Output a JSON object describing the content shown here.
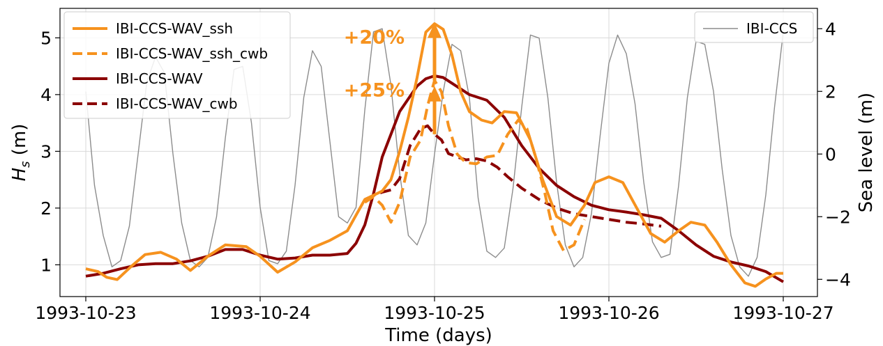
{
  "chart_data": {
    "type": "line",
    "xlabel": "Time (days)",
    "ylabel_left_main": "H",
    "ylabel_left_sub": "s",
    "ylabel_left_unit": " (m)",
    "ylabel_right": "Sea level (m)",
    "x_unit": "days since 1993-10-23 00:00",
    "xlim": [
      0,
      4
    ],
    "x_ticks": [
      {
        "value": 0,
        "label": "1993-10-23"
      },
      {
        "value": 1,
        "label": "1993-10-24"
      },
      {
        "value": 2,
        "label": "1993-10-25"
      },
      {
        "value": 3,
        "label": "1993-10-26"
      },
      {
        "value": 4,
        "label": "1993-10-27"
      }
    ],
    "ylim_left": [
      0.44,
      5.52
    ],
    "y_ticks_left": [
      1,
      2,
      3,
      4,
      5
    ],
    "ylim_right": [
      -4.55,
      4.65
    ],
    "y_ticks_right": [
      -4,
      -2,
      0,
      2,
      4
    ],
    "grid": true,
    "colors": {
      "orange": "#f6921e",
      "darkred": "#8b0000",
      "gray": "#8c8c8c"
    },
    "series": [
      {
        "name": "IBI-CCS-WAV_ssh",
        "axis": "left",
        "color": "#f6921e",
        "style": "solid",
        "x": [
          0,
          0.07,
          0.12,
          0.18,
          0.26,
          0.34,
          0.43,
          0.52,
          0.6,
          0.7,
          0.8,
          0.92,
          1.0,
          1.1,
          1.2,
          1.3,
          1.4,
          1.5,
          1.6,
          1.7,
          1.75,
          1.8,
          1.85,
          1.9,
          1.95,
          2.0,
          2.05,
          2.1,
          2.15,
          2.2,
          2.27,
          2.33,
          2.4,
          2.47,
          2.55,
          2.62,
          2.7,
          2.78,
          2.86,
          2.92,
          3.0,
          3.08,
          3.16,
          3.24,
          3.32,
          3.4,
          3.47,
          3.55,
          3.62,
          3.7,
          3.78,
          3.84,
          3.9,
          3.96,
          4.0
        ],
        "y": [
          0.93,
          0.88,
          0.78,
          0.74,
          0.97,
          1.18,
          1.22,
          1.1,
          0.9,
          1.15,
          1.35,
          1.32,
          1.15,
          0.87,
          1.05,
          1.3,
          1.43,
          1.6,
          2.15,
          2.3,
          2.5,
          3.0,
          3.6,
          4.3,
          5.1,
          5.25,
          5.15,
          4.7,
          4.05,
          3.7,
          3.55,
          3.5,
          3.7,
          3.68,
          3.2,
          2.5,
          1.85,
          1.7,
          2.05,
          2.45,
          2.55,
          2.45,
          2.0,
          1.55,
          1.4,
          1.6,
          1.75,
          1.7,
          1.4,
          1.0,
          0.68,
          0.62,
          0.75,
          0.85,
          0.85
        ]
      },
      {
        "name": "IBI-CCS-WAV_ssh_cwb",
        "axis": "left",
        "color": "#f6921e",
        "style": "dashed",
        "x": [
          1.6,
          1.65,
          1.7,
          1.75,
          1.8,
          1.86,
          1.92,
          1.96,
          2.0,
          2.04,
          2.08,
          2.13,
          2.18,
          2.24,
          2.3,
          2.36,
          2.42,
          2.48,
          2.53,
          2.58,
          2.63,
          2.68,
          2.74,
          2.8,
          2.86
        ],
        "y": [
          2.1,
          2.2,
          2.05,
          1.75,
          2.1,
          2.9,
          3.2,
          3.8,
          4.25,
          4.05,
          3.45,
          2.95,
          2.8,
          2.78,
          2.9,
          2.93,
          3.3,
          3.55,
          3.4,
          2.9,
          2.3,
          1.6,
          1.25,
          1.35,
          1.8
        ]
      },
      {
        "name": "IBI-CCS-WAV",
        "axis": "left",
        "color": "#8b0000",
        "style": "solid",
        "x": [
          0,
          0.1,
          0.2,
          0.3,
          0.4,
          0.5,
          0.6,
          0.7,
          0.8,
          0.9,
          1.0,
          1.1,
          1.2,
          1.3,
          1.4,
          1.5,
          1.55,
          1.6,
          1.65,
          1.7,
          1.8,
          1.9,
          1.95,
          2.0,
          2.05,
          2.1,
          2.2,
          2.3,
          2.4,
          2.5,
          2.6,
          2.7,
          2.8,
          2.9,
          3.0,
          3.1,
          3.2,
          3.3,
          3.4,
          3.5,
          3.6,
          3.7,
          3.8,
          3.9,
          4.0
        ],
        "y": [
          0.8,
          0.85,
          0.93,
          1.0,
          1.02,
          1.02,
          1.07,
          1.15,
          1.27,
          1.27,
          1.17,
          1.1,
          1.12,
          1.17,
          1.17,
          1.2,
          1.38,
          1.7,
          2.25,
          2.9,
          3.7,
          4.15,
          4.28,
          4.33,
          4.3,
          4.2,
          4.0,
          3.9,
          3.6,
          3.1,
          2.7,
          2.4,
          2.2,
          2.05,
          1.97,
          1.93,
          1.88,
          1.82,
          1.6,
          1.35,
          1.15,
          1.05,
          0.98,
          0.88,
          0.7
        ]
      },
      {
        "name": "IBI-CCS-WAV_cwb",
        "axis": "left",
        "color": "#8b0000",
        "style": "dashed",
        "x": [
          1.6,
          1.65,
          1.7,
          1.75,
          1.8,
          1.86,
          1.92,
          1.96,
          2.0,
          2.04,
          2.08,
          2.13,
          2.18,
          2.24,
          2.3,
          2.36,
          2.42,
          2.5,
          2.6,
          2.7,
          2.8,
          2.9,
          3.0,
          3.1,
          3.2,
          3.3
        ],
        "y": [
          2.15,
          2.22,
          2.28,
          2.32,
          2.52,
          3.1,
          3.4,
          3.45,
          3.3,
          3.2,
          2.96,
          2.9,
          2.85,
          2.87,
          2.83,
          2.72,
          2.55,
          2.35,
          2.15,
          2.0,
          1.9,
          1.85,
          1.8,
          1.75,
          1.72,
          1.68
        ]
      },
      {
        "name": "IBI-CCS",
        "axis": "right",
        "color": "#8c8c8c",
        "style": "solid",
        "x": [
          0,
          0.05,
          0.1,
          0.15,
          0.2,
          0.25,
          0.3,
          0.35,
          0.4,
          0.45,
          0.5,
          0.55,
          0.6,
          0.65,
          0.7,
          0.75,
          0.8,
          0.85,
          0.9,
          0.95,
          1.0,
          1.05,
          1.1,
          1.15,
          1.2,
          1.25,
          1.3,
          1.35,
          1.4,
          1.45,
          1.5,
          1.55,
          1.6,
          1.65,
          1.7,
          1.75,
          1.8,
          1.85,
          1.9,
          1.95,
          2.0,
          2.05,
          2.1,
          2.15,
          2.2,
          2.25,
          2.3,
          2.35,
          2.4,
          2.45,
          2.5,
          2.55,
          2.6,
          2.65,
          2.7,
          2.75,
          2.8,
          2.85,
          2.9,
          2.95,
          3.0,
          3.05,
          3.1,
          3.15,
          3.2,
          3.25,
          3.3,
          3.35,
          3.4,
          3.45,
          3.5,
          3.55,
          3.6,
          3.65,
          3.7,
          3.75,
          3.8,
          3.85,
          3.9,
          3.95,
          4.0
        ],
        "y": [
          2.0,
          -1.0,
          -2.6,
          -3.6,
          -3.4,
          -2.3,
          0.0,
          2.3,
          3.1,
          2.6,
          0.0,
          -2.2,
          -3.4,
          -3.6,
          -3.3,
          -2.0,
          0.5,
          2.7,
          2.8,
          1.0,
          -1.7,
          -3.4,
          -3.5,
          -3.1,
          -1.0,
          1.8,
          3.3,
          2.8,
          0.4,
          -2.0,
          -2.2,
          -1.7,
          1.4,
          3.9,
          4.0,
          2.2,
          -0.6,
          -2.6,
          -2.9,
          -2.2,
          0.0,
          2.0,
          3.5,
          3.3,
          1.8,
          -1.4,
          -3.1,
          -3.3,
          -3.0,
          -1.1,
          1.5,
          3.8,
          3.7,
          1.8,
          -0.9,
          -2.9,
          -3.6,
          -3.3,
          -1.9,
          0.6,
          2.9,
          3.8,
          3.2,
          1.6,
          -0.9,
          -2.8,
          -3.3,
          -3.2,
          -1.0,
          1.8,
          3.6,
          3.5,
          2.0,
          -0.5,
          -2.6,
          -3.6,
          -3.9,
          -3.3,
          -1.3,
          1.5,
          3.9
        ]
      }
    ],
    "legend_left": {
      "placement": "upper-left",
      "entries": [
        {
          "name": "IBI-CCS-WAV_ssh",
          "color": "#f6921e",
          "style": "solid"
        },
        {
          "name": "IBI-CCS-WAV_ssh_cwb",
          "color": "#f6921e",
          "style": "dashed"
        },
        {
          "name": "IBI-CCS-WAV",
          "color": "#8b0000",
          "style": "solid"
        },
        {
          "name": "IBI-CCS-WAV_cwb",
          "color": "#8b0000",
          "style": "dashed"
        }
      ]
    },
    "legend_right": {
      "placement": "upper-right",
      "entries": [
        {
          "name": "IBI-CCS",
          "color": "#8c8c8c",
          "style": "solid"
        }
      ]
    },
    "annotations": [
      {
        "text": "+20%",
        "x": 2.0,
        "y_from": 4.25,
        "y_to": 5.22,
        "color": "#f6921e"
      },
      {
        "text": "+25%",
        "x": 2.0,
        "y_from": 3.3,
        "y_to": 4.1,
        "color": "#f6921e"
      }
    ]
  }
}
